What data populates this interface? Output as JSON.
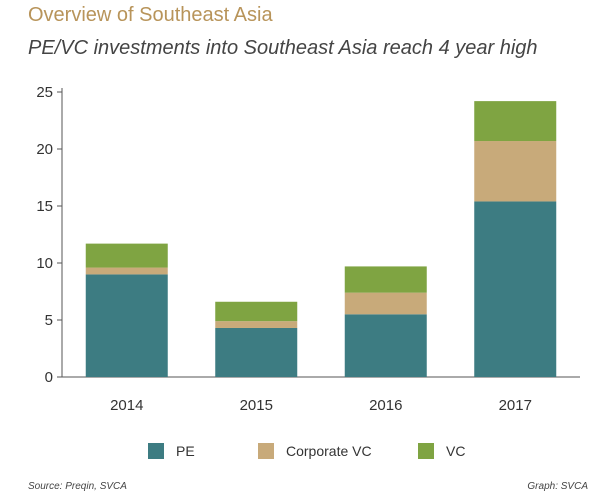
{
  "header": {
    "title": "Overview of Southeast Asia",
    "subtitle": "PE/VC investments into Southeast Asia reach 4 year high"
  },
  "chart_data": {
    "type": "bar",
    "stacked": true,
    "categories": [
      "2014",
      "2015",
      "2016",
      "2017"
    ],
    "series": [
      {
        "name": "PE",
        "color": "#3d7c82",
        "values": [
          9.0,
          4.3,
          5.5,
          15.4
        ]
      },
      {
        "name": "Corporate VC",
        "color": "#c8aa7a",
        "values": [
          0.6,
          0.6,
          1.9,
          5.3
        ]
      },
      {
        "name": "VC",
        "color": "#7fa442",
        "values": [
          2.1,
          1.7,
          2.3,
          3.5
        ]
      }
    ],
    "y_ticks": [
      "0",
      "5",
      "10",
      "15",
      "20",
      "25"
    ],
    "ylim": [
      0,
      25
    ],
    "title": "",
    "xlabel": "",
    "ylabel": "",
    "legend_position": "bottom"
  },
  "footer": {
    "source": "Source: Preqin, SVCA",
    "credit": "Graph: SVCA"
  }
}
